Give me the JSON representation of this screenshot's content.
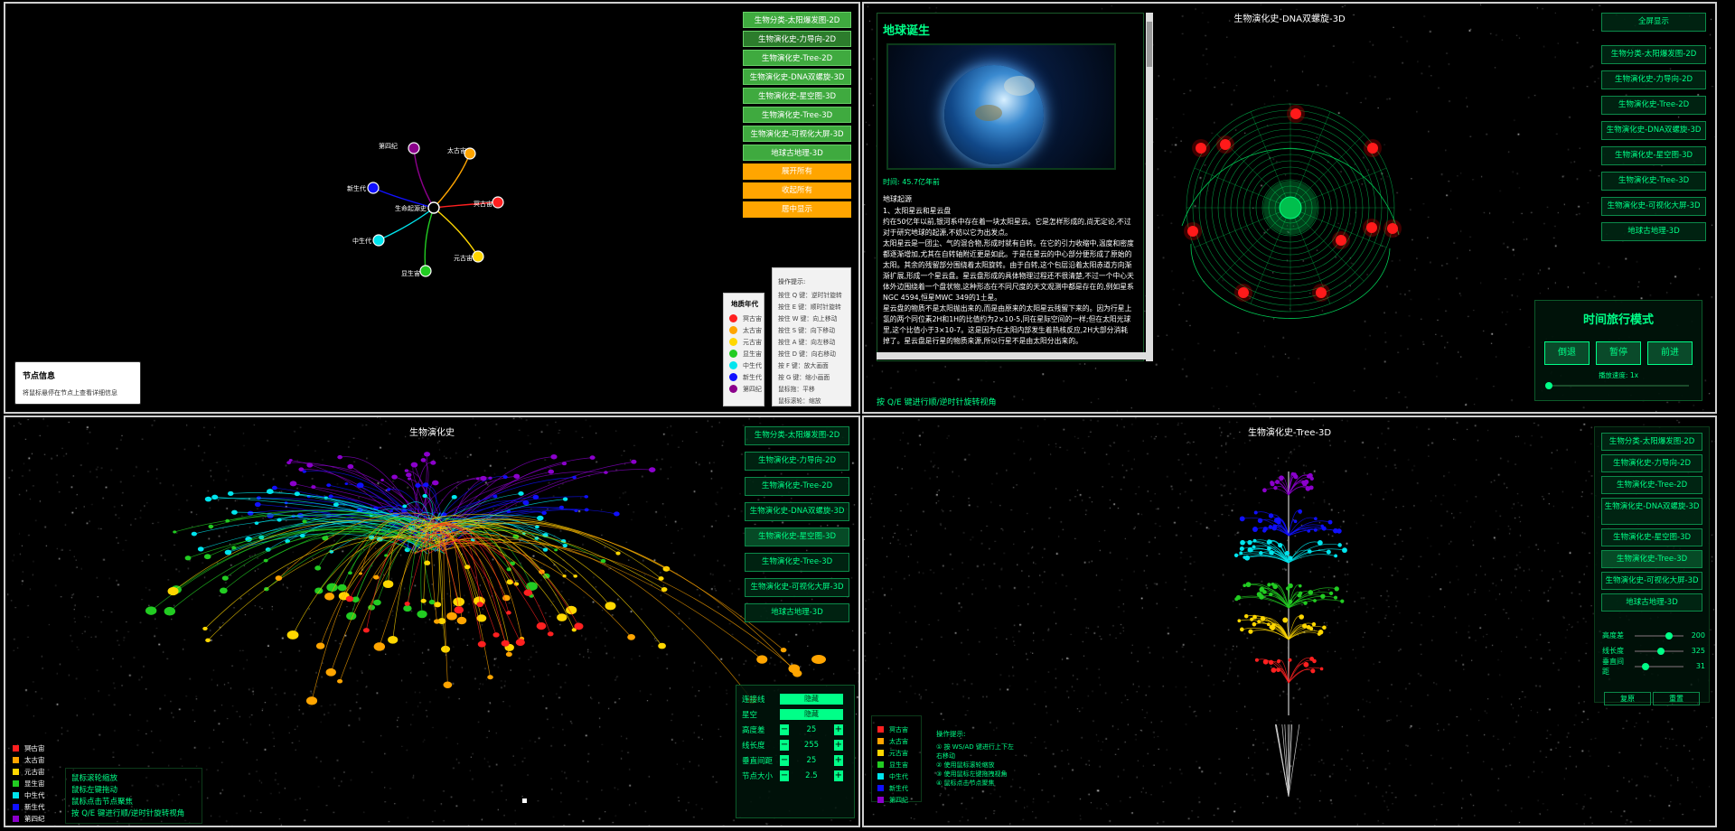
{
  "nav": {
    "q1_buttons": [
      "生物分类-太阳爆发图-2D",
      "生物演化史-力导向-2D",
      "生物演化史-Tree-2D",
      "生物演化史-DNA双螺旋-3D",
      "生物演化史-星空图-3D",
      "生物演化史-Tree-3D",
      "生物演化史-可视化大屏-3D",
      "地球古地理-3D"
    ],
    "q1_actions": [
      "展开所有",
      "收起所有",
      "居中显示"
    ],
    "q2_buttons": [
      "生物分类-太阳爆发图-2D",
      "生物演化史-力导向-2D",
      "生物演化史-Tree-2D",
      "生物演化史-DNA双螺旋-3D",
      "生物演化史-星空图-3D",
      "生物演化史-Tree-3D",
      "生物演化史-可视化大屏-3D",
      "地球古地理-3D"
    ],
    "q3_buttons": [
      "生物分类-太阳爆发图-2D",
      "生物演化史-力导向-2D",
      "生物演化史-Tree-2D",
      "生物演化史-DNA双螺旋-3D",
      "生物演化史-星空图-3D",
      "生物演化史-Tree-3D",
      "生物演化史-可视化大屏-3D",
      "地球古地理-3D"
    ],
    "q4_buttons": [
      "生物分类-太阳爆发图-2D",
      "生物演化史-力导向-2D",
      "生物演化史-Tree-2D",
      "生物演化史-DNA双螺旋-3D",
      "生物演化史-星空图-3D",
      "生物演化史-Tree-3D",
      "生物演化史-可视化大屏-3D",
      "地球古地理-3D"
    ]
  },
  "q1": {
    "root_label": "生命起源史",
    "nodes": [
      {
        "label": "第四纪",
        "color": "#8b008b"
      },
      {
        "label": "太古宙",
        "color": "#ffa500"
      },
      {
        "label": "冥古宙",
        "color": "#ff2020"
      },
      {
        "label": "元古宙",
        "color": "#ffd700"
      },
      {
        "label": "显生宙",
        "color": "#22cc22"
      },
      {
        "label": "中生代",
        "color": "#00e5ee"
      },
      {
        "label": "新生代",
        "color": "#1010ff"
      }
    ],
    "node_info_title": "节点信息",
    "node_info_text": "将鼠标悬停在节点上查看详细信息",
    "legend_title": "地质年代",
    "legend": [
      {
        "label": "冥古宙",
        "color": "#ff2020"
      },
      {
        "label": "太古宙",
        "color": "#ffa500"
      },
      {
        "label": "元古宙",
        "color": "#ffd700"
      },
      {
        "label": "显生宙",
        "color": "#22cc22"
      },
      {
        "label": "中生代",
        "color": "#00e5ee"
      },
      {
        "label": "新生代",
        "color": "#1010ff"
      },
      {
        "label": "第四纪",
        "color": "#8b008b"
      }
    ],
    "hint_title": "操作提示:",
    "hints": [
      "按住 Q 键：逆时针旋转",
      "按住 E 键：顺时针旋转",
      "按住 W 键：向上移动",
      "按住 S 键：向下移动",
      "按住 A 键：向左移动",
      "按住 D 键：向右移动",
      "按 F 键：放大画面",
      "按 G 键：缩小画面",
      "鼠标拖：平移",
      "鼠标滚轮：缩放"
    ]
  },
  "q2": {
    "title": "生物演化史-DNA双螺旋-3D",
    "fullscreen": "全屏显示",
    "info_title": "地球诞生",
    "time": "时间: 45.7亿年前",
    "subhead": "地球起源",
    "paragraphs": [
      "1、太阳星云和星云盘",
      "约在50亿年以前,银河系中存在着一块太阳星云。它是怎样形成的,尚无定论,不过对于研究地球的起源,不妨以它为出发点。",
      "太阳星云是一团尘、气的混合物,形成时就有自转。在它的引力收缩中,温度和密度都逐渐增加,尤其在自转轴附近更是如此。于是在星云的中心部分便形成了原始的太阳。其余的残留部分围绕着太阳旋转。由于自转,这个包层沿着太阳赤道方向渐渐扩展,形成一个星云盘。星云盘形成的具体物理过程还不很清楚,不过一个中心天体外边围绕着一个盘状物,这种形态在不同尺度的天文观测中都是存在的,例如星系NGC 4594,恒星MWC 349的1土星。",
      "星云盘的物质不是太阳抛出来的,而是由原来的太阳星云残留下来的。因为行星上氢的两个同位素2H和1H的比值约为2×10-5,同在星际空间的一样;但在太阳光球里,这个比值小于3×10-7。这是因为在太阳内部发生着热核反应,2H大部分消耗掉了。星云盘是行星的物质来源,所以行星不是由太阳分出来的。"
    ],
    "bottom_hint": "按 Q/E 键进行顺/逆时针旋转视角",
    "time_title": "时间旅行模式",
    "time_buttons": [
      "倒退",
      "暂停",
      "前进"
    ],
    "speed_label": "播放速度: 1x"
  },
  "q3": {
    "title": "生物演化史",
    "controls": {
      "connect_label": "连接线",
      "connect_value": "隐藏",
      "starry_label": "星空",
      "starry_value": "隐藏",
      "rows": [
        {
          "label": "高度差",
          "value": "25"
        },
        {
          "label": "线长度",
          "value": "255"
        },
        {
          "label": "垂直间距",
          "value": "25"
        },
        {
          "label": "节点大小",
          "value": "2.5"
        }
      ]
    },
    "legend": [
      {
        "label": "冥古宙",
        "color": "#ff2020"
      },
      {
        "label": "太古宙",
        "color": "#ffa500"
      },
      {
        "label": "元古宙",
        "color": "#ffd700"
      },
      {
        "label": "显生宙",
        "color": "#22cc22"
      },
      {
        "label": "中生代",
        "color": "#00e5ee"
      },
      {
        "label": "新生代",
        "color": "#1010ff"
      },
      {
        "label": "第四纪",
        "color": "#8b00cc"
      }
    ],
    "hints": [
      "鼠标滚轮缩放",
      "鼠标左键拖动",
      "鼠标点击节点聚焦",
      "按 Q/E 键进行顺/逆时针旋转视角"
    ]
  },
  "q4": {
    "title": "生物演化史-Tree-3D",
    "sliders": [
      {
        "label": "高度差",
        "value": "200",
        "pos": 0.62
      },
      {
        "label": "线长度",
        "value": "325",
        "pos": 0.45
      },
      {
        "label": "垂直间距",
        "value": "31",
        "pos": 0.15
      }
    ],
    "actions": [
      "复原",
      "重置"
    ],
    "legend": [
      {
        "label": "冥古宙",
        "color": "#ff2020"
      },
      {
        "label": "太古宙",
        "color": "#ffa500"
      },
      {
        "label": "元古宙",
        "color": "#ffd700"
      },
      {
        "label": "显生宙",
        "color": "#22cc22"
      },
      {
        "label": "中生代",
        "color": "#00e5ee"
      },
      {
        "label": "新生代",
        "color": "#1010ff"
      },
      {
        "label": "第四纪",
        "color": "#8b00cc"
      }
    ],
    "hint_title": "操作提示:",
    "hints": [
      "① 按 WS/AD 键进行上下左右移动",
      "② 使用鼠标滚轮缩放",
      "③ 使用鼠标左键拖拽视角",
      "④ 鼠标点击节点聚焦"
    ]
  }
}
